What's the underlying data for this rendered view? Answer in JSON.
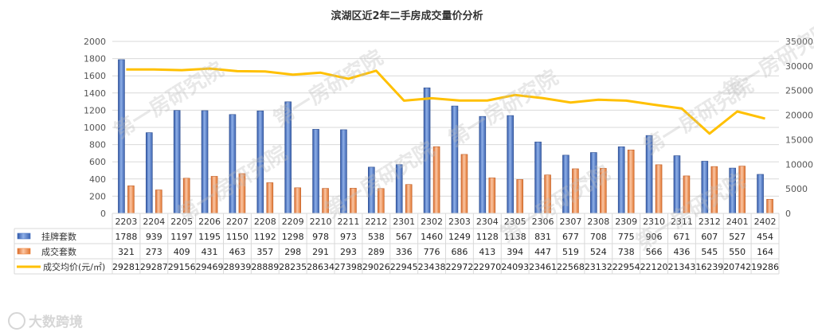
{
  "watermark": {
    "diagonal_text": "第一房研究院",
    "corner_text": "大数跨境"
  },
  "chart_data": {
    "title": "滨湖区近2年二手房成交量价分析",
    "type": "bar",
    "categories": [
      "2203",
      "2204",
      "2205",
      "2206",
      "2207",
      "2208",
      "2209",
      "2210",
      "2211",
      "2212",
      "2301",
      "2302",
      "2303",
      "2304",
      "2305",
      "2306",
      "2307",
      "2308",
      "2309",
      "2310",
      "2311",
      "2312",
      "2401",
      "2402"
    ],
    "series": [
      {
        "name": "挂牌套数",
        "type": "bar",
        "axis": "left",
        "color": "#4472c4",
        "values": [
          1788,
          939,
          1197,
          1195,
          1150,
          1192,
          1298,
          978,
          973,
          538,
          567,
          1460,
          1249,
          1128,
          1138,
          831,
          677,
          708,
          775,
          906,
          671,
          607,
          527,
          454
        ]
      },
      {
        "name": "成交套数",
        "type": "bar",
        "axis": "left",
        "color": "#ed7d31",
        "values": [
          321,
          273,
          409,
          431,
          463,
          357,
          298,
          291,
          293,
          289,
          336,
          776,
          686,
          413,
          394,
          447,
          519,
          524,
          738,
          566,
          436,
          545,
          550,
          164
        ]
      },
      {
        "name": "成交均价(元/㎡)",
        "type": "line",
        "axis": "right",
        "color": "#ffc000",
        "values": [
          29281,
          29287,
          29156,
          29469,
          28939,
          28889,
          28235,
          28634,
          27398,
          29026,
          22945,
          23438,
          22972,
          22970,
          24093,
          23461,
          22568,
          23132,
          22954,
          22120,
          21343,
          16239,
          20742,
          19286
        ]
      }
    ],
    "y_left": {
      "min": 0,
      "max": 2000,
      "step": 200
    },
    "y_right": {
      "min": 0,
      "max": 35000,
      "step": 5000
    },
    "data_table": true,
    "grid": true
  }
}
